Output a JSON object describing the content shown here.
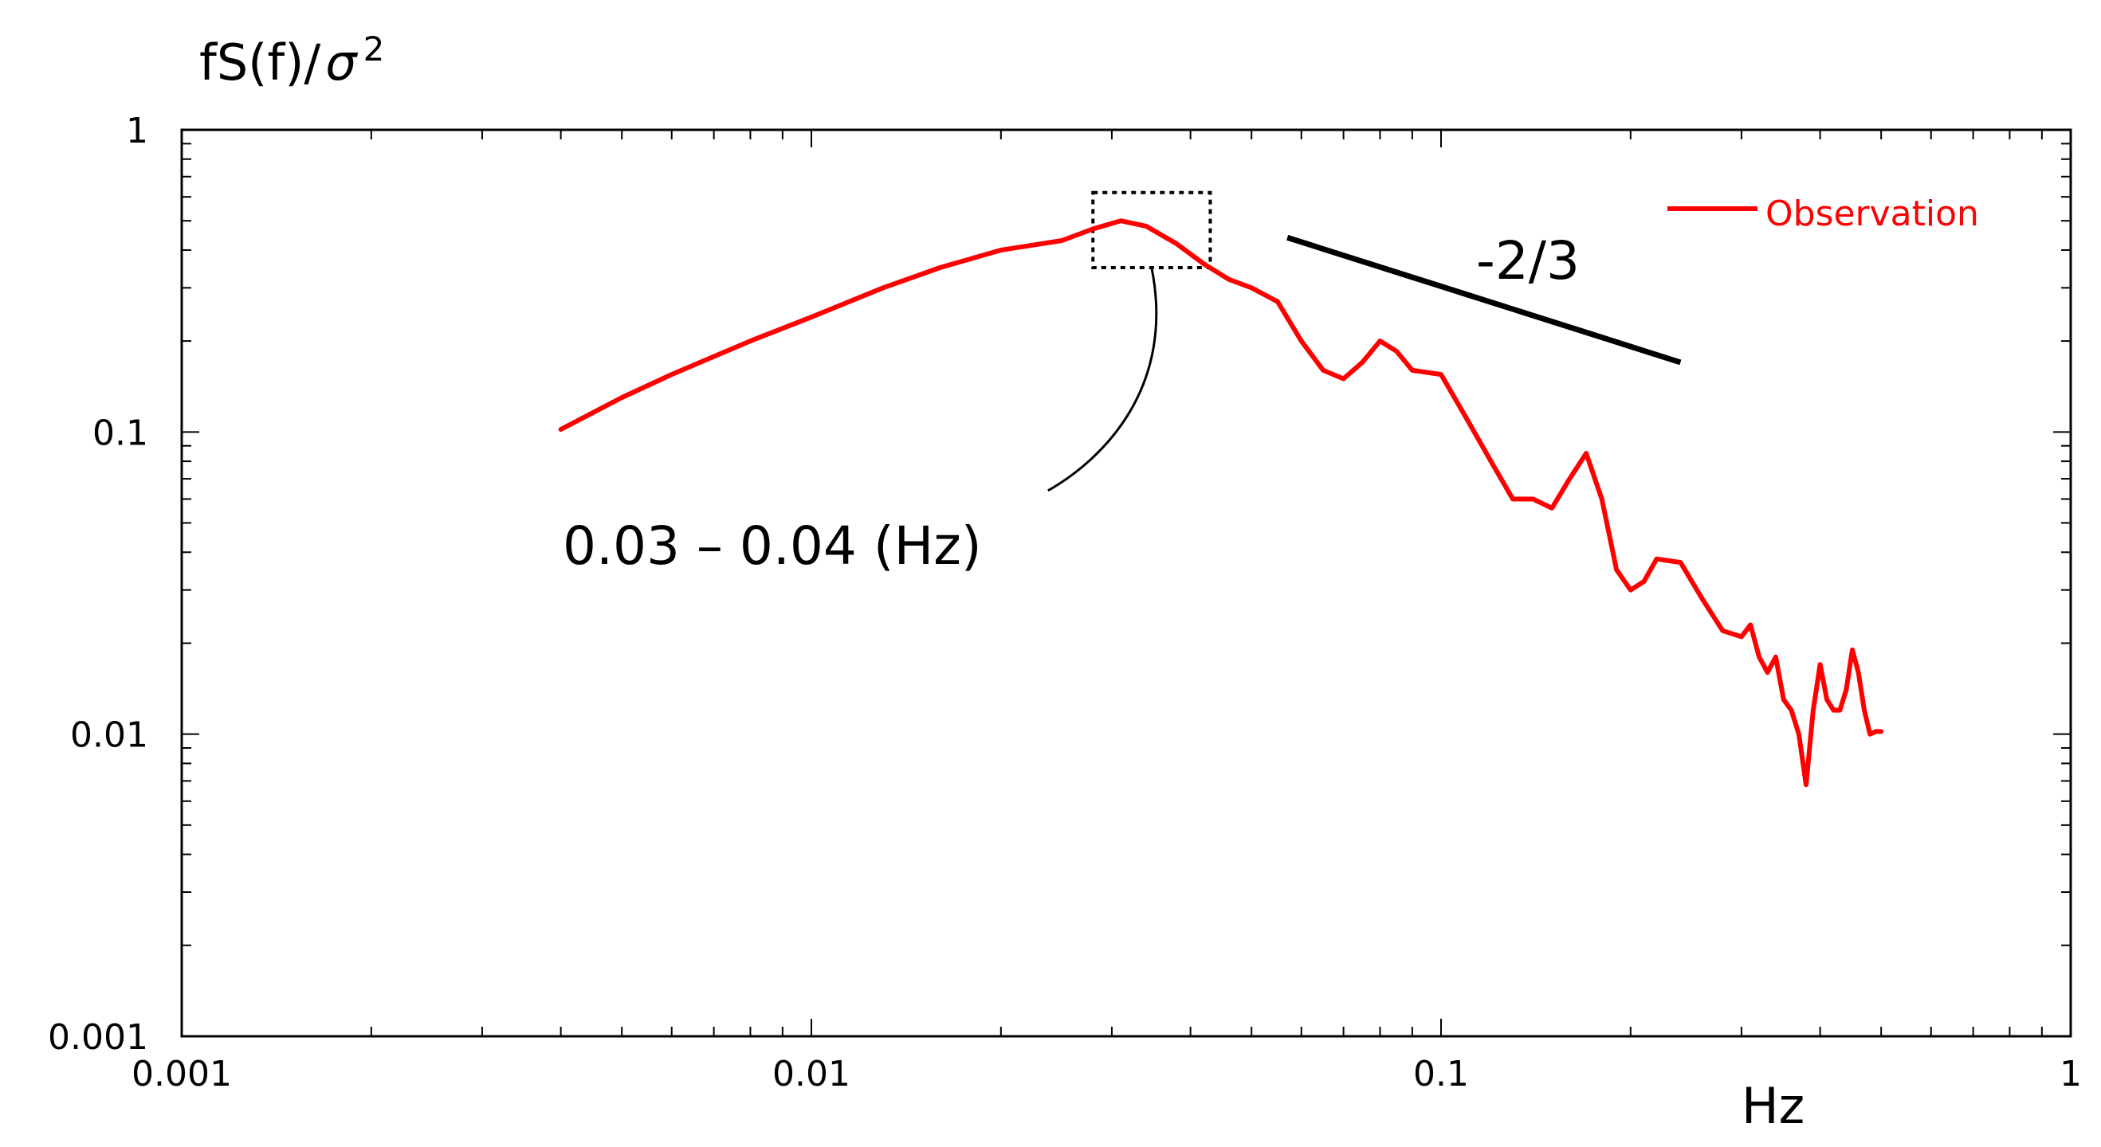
{
  "chart_data": {
    "type": "line",
    "xscale": "log",
    "yscale": "log",
    "xlim": [
      0.001,
      1
    ],
    "ylim": [
      0.001,
      1
    ],
    "xlabel": "Hz",
    "ylabel": "fS(f)/",
    "ylabel_symbol": "σ",
    "ylabel_superscript": "2",
    "xtick_labels": [
      "0.001",
      "0.01",
      "0.1",
      "1"
    ],
    "ytick_labels": [
      "0.001",
      "0.01",
      "0.1",
      "1"
    ],
    "xticks": [
      0.001,
      0.01,
      0.1,
      1
    ],
    "yticks": [
      0.001,
      0.01,
      0.1,
      1
    ],
    "grid": false,
    "legend_position": "top-right",
    "series": [
      {
        "name": "Observation",
        "color": "#ff0000",
        "x": [
          0.004,
          0.005,
          0.006,
          0.008,
          0.01,
          0.013,
          0.016,
          0.02,
          0.025,
          0.028,
          0.031,
          0.034,
          0.038,
          0.042,
          0.046,
          0.05,
          0.055,
          0.06,
          0.065,
          0.07,
          0.075,
          0.08,
          0.085,
          0.09,
          0.1,
          0.11,
          0.12,
          0.13,
          0.14,
          0.15,
          0.16,
          0.17,
          0.18,
          0.19,
          0.2,
          0.21,
          0.22,
          0.24,
          0.26,
          0.28,
          0.3,
          0.31,
          0.32,
          0.33,
          0.34,
          0.35,
          0.36,
          0.37,
          0.38,
          0.39,
          0.4,
          0.41,
          0.42,
          0.43,
          0.44,
          0.45,
          0.46,
          0.47,
          0.48,
          0.49,
          0.5
        ],
        "y": [
          0.102,
          0.13,
          0.155,
          0.2,
          0.24,
          0.3,
          0.35,
          0.4,
          0.43,
          0.47,
          0.5,
          0.48,
          0.42,
          0.36,
          0.32,
          0.3,
          0.27,
          0.2,
          0.16,
          0.15,
          0.17,
          0.2,
          0.185,
          0.16,
          0.155,
          0.11,
          0.08,
          0.06,
          0.06,
          0.056,
          0.07,
          0.085,
          0.06,
          0.035,
          0.03,
          0.032,
          0.038,
          0.037,
          0.028,
          0.022,
          0.021,
          0.023,
          0.018,
          0.016,
          0.018,
          0.013,
          0.012,
          0.01,
          0.0068,
          0.012,
          0.017,
          0.013,
          0.012,
          0.012,
          0.014,
          0.019,
          0.016,
          0.012,
          0.01,
          0.0102,
          0.0102
        ]
      }
    ],
    "annotations": {
      "peak_range_label": "0.03 – 0.04 (Hz)",
      "peak_box_x": [
        0.028,
        0.043
      ],
      "peak_box_y": [
        0.35,
        0.62
      ],
      "slope_label": "-2/3",
      "slope_line_x": [
        0.057,
        0.24
      ],
      "slope_line_y": [
        0.44,
        0.17
      ]
    }
  }
}
